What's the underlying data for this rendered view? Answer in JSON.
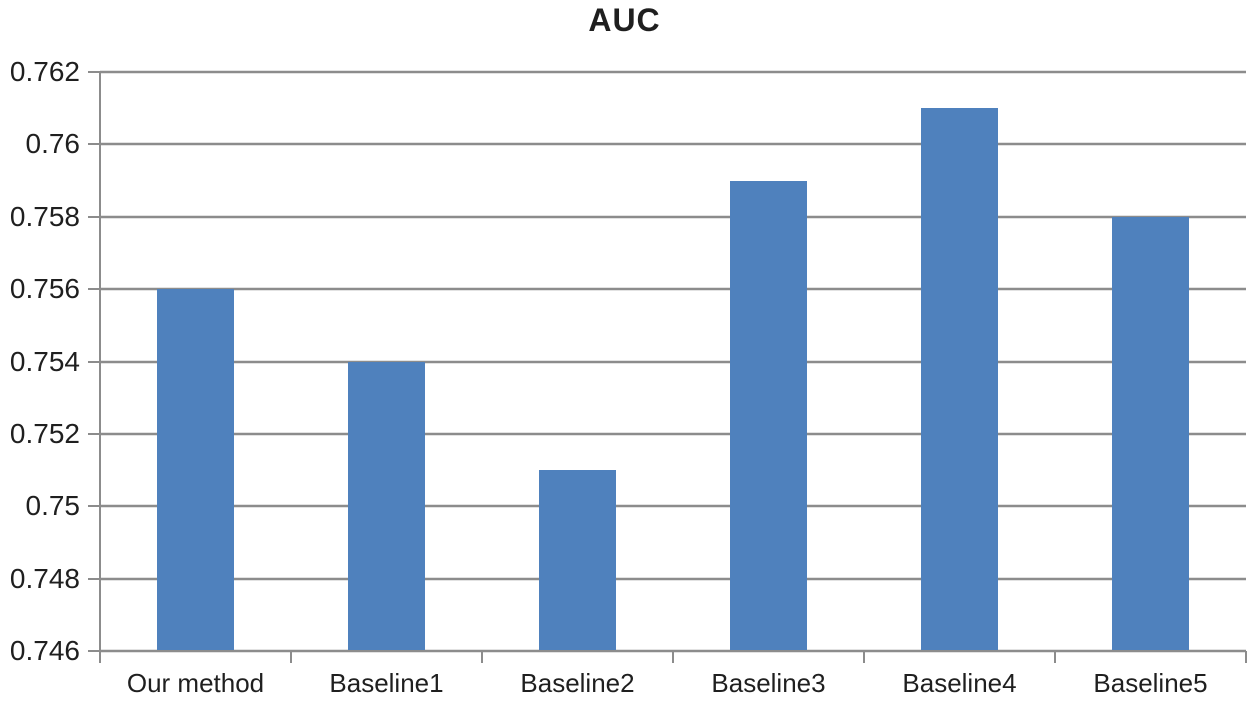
{
  "chart_data": {
    "type": "bar",
    "title": "AUC",
    "categories": [
      "Our method",
      "Baseline1",
      "Baseline2",
      "Baseline3",
      "Baseline4",
      "Baseline5"
    ],
    "values": [
      0.756,
      0.754,
      0.751,
      0.759,
      0.761,
      0.758
    ],
    "xlabel": "",
    "ylabel": "",
    "ylim": [
      0.746,
      0.762
    ],
    "ytick_values": [
      0.746,
      0.748,
      0.75,
      0.752,
      0.754,
      0.756,
      0.758,
      0.76,
      0.762
    ],
    "ytick_labels": [
      "0.746",
      "0.748",
      "0.75",
      "0.752",
      "0.754",
      "0.756",
      "0.758",
      "0.76",
      "0.762"
    ],
    "grid": true,
    "legend_position": "none",
    "colors": {
      "bar_fill": "#4F81BD",
      "gridline": "#8C8C8C",
      "axis": "#8C8C8C",
      "text": "#1F1F1F",
      "background": "#FFFFFF"
    }
  }
}
